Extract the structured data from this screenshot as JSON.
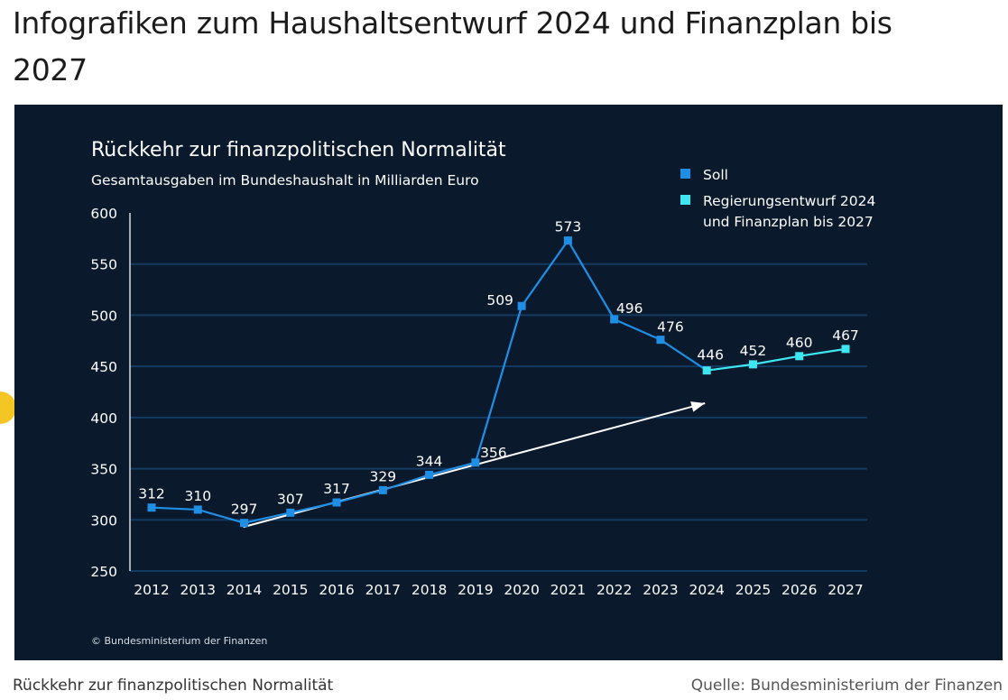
{
  "heading": "Infografiken zum Haushaltsentwurf 2024 und Finanzplan bis 2027",
  "caption": {
    "title": "Rückkehr zur finanzpolitischen Normalität",
    "source_label": "Quelle:",
    "source": "Bundesministerium der Finanzen"
  },
  "chart_data": {
    "type": "line",
    "title": "Rückkehr zur finanzpolitischen Normalität",
    "subtitle": "Gesamtausgaben im Bundeshaushalt in Milliarden Euro",
    "copyright": "© Bundesministerium der Finanzen",
    "categories": [
      "2012",
      "2013",
      "2014",
      "2015",
      "2016",
      "2017",
      "2018",
      "2019",
      "2020",
      "2021",
      "2022",
      "2023",
      "2024",
      "2025",
      "2026",
      "2027"
    ],
    "ylim": [
      250,
      600
    ],
    "yticks": [
      250,
      300,
      350,
      400,
      450,
      500,
      550,
      600
    ],
    "series": [
      {
        "name": "Soll",
        "color": "#1f8fe6",
        "x": [
          "2012",
          "2013",
          "2014",
          "2015",
          "2016",
          "2017",
          "2018",
          "2019",
          "2020",
          "2021",
          "2022",
          "2023",
          "2024"
        ],
        "values": [
          312,
          310,
          297,
          307,
          317,
          329,
          344,
          356,
          509,
          573,
          496,
          476,
          446
        ]
      },
      {
        "name": "Regierungsentwurf 2024 und Finanzplan bis 2027",
        "name_lines": [
          "Regierungsentwurf 2024",
          "und Finanzplan bis 2027"
        ],
        "color": "#3fe6f2",
        "x": [
          "2024",
          "2025",
          "2026",
          "2027"
        ],
        "values": [
          446,
          452,
          460,
          467
        ]
      }
    ],
    "data_labels": [
      {
        "x": "2012",
        "value": 312,
        "label": "312"
      },
      {
        "x": "2013",
        "value": 310,
        "label": "310"
      },
      {
        "x": "2014",
        "value": 297,
        "label": "297"
      },
      {
        "x": "2015",
        "value": 307,
        "label": "307"
      },
      {
        "x": "2016",
        "value": 317,
        "label": "317"
      },
      {
        "x": "2017",
        "value": 329,
        "label": "329"
      },
      {
        "x": "2018",
        "value": 344,
        "label": "344"
      },
      {
        "x": "2019",
        "value": 356,
        "label": "356"
      },
      {
        "x": "2020",
        "value": 509,
        "label": "509"
      },
      {
        "x": "2021",
        "value": 573,
        "label": "573"
      },
      {
        "x": "2022",
        "value": 496,
        "label": "496"
      },
      {
        "x": "2023",
        "value": 476,
        "label": "476"
      },
      {
        "x": "2024",
        "value": 446,
        "label": "446"
      },
      {
        "x": "2025",
        "value": 452,
        "label": "452"
      },
      {
        "x": "2026",
        "value": 460,
        "label": "460"
      },
      {
        "x": "2027",
        "value": 467,
        "label": "467"
      }
    ],
    "trend_arrow": {
      "from": {
        "x": "2014",
        "value": 293
      },
      "to": {
        "x": "2024",
        "value": 414
      },
      "color": "#ffffff"
    },
    "grid": true,
    "legend_position": "top-right"
  }
}
